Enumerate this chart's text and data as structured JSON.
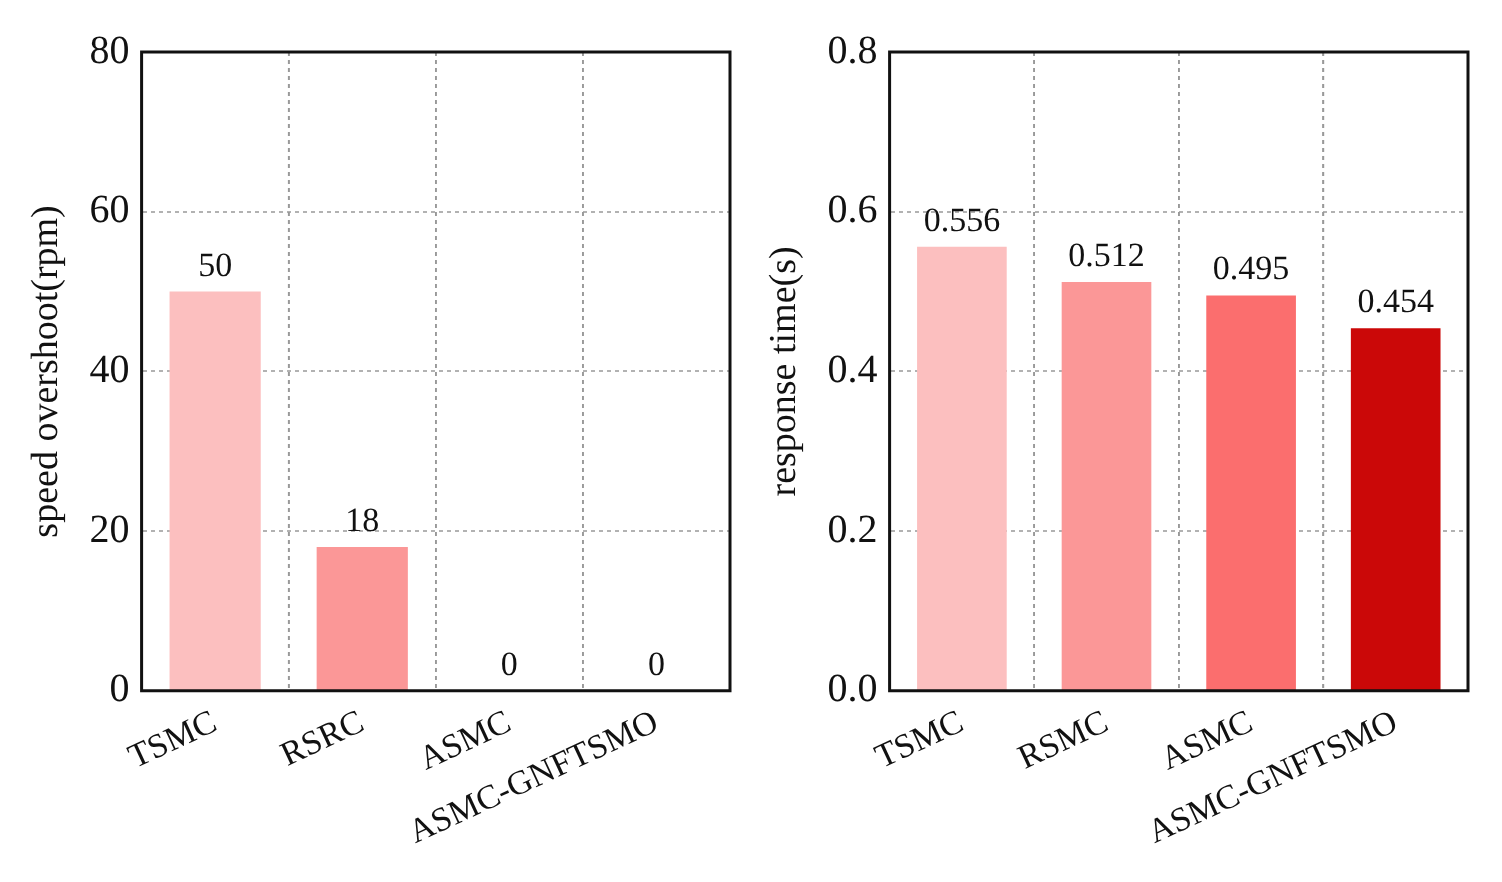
{
  "chart_data": [
    {
      "type": "bar",
      "ylabel": "speed overshoot(rpm)",
      "categories": [
        "TSMC",
        "RSRC",
        "ASMC",
        "ASMC-GNFTSMO"
      ],
      "values": [
        50,
        18,
        0,
        0
      ],
      "colors": [
        "#fcbfbf",
        "#fb9797",
        "#fb6e6e",
        "#cb0808"
      ],
      "ylim": [
        0,
        80
      ],
      "yticks": [
        0,
        20,
        40,
        60,
        80
      ],
      "grid": true,
      "data_labels": true
    },
    {
      "type": "bar",
      "ylabel": "response time(s)",
      "categories": [
        "TSMC",
        "RSMC",
        "ASMC",
        "ASMC-GNFTSMO"
      ],
      "values": [
        0.556,
        0.512,
        0.495,
        0.454
      ],
      "data_labels": true,
      "colors": [
        "#fcbfbf",
        "#fb9797",
        "#fb6e6e",
        "#cb0808"
      ],
      "ylim": [
        0,
        0.8
      ],
      "yticks": [
        {
          "value": 0,
          "label": "0.0"
        },
        {
          "value": 0.2,
          "label": "0.2"
        },
        {
          "value": 0.4,
          "label": "0.4"
        },
        {
          "value": 0.6,
          "label": "0.6"
        },
        {
          "value": 0.8,
          "label": "0.8"
        }
      ],
      "grid": true
    }
  ]
}
